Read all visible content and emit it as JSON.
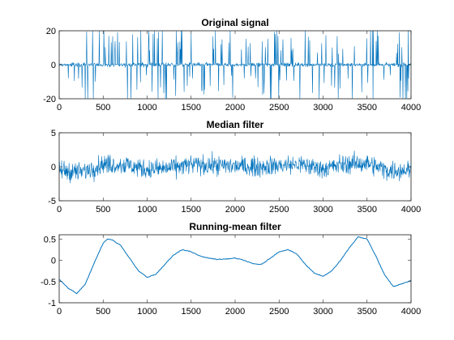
{
  "chart_data": [
    {
      "type": "line",
      "title": "Original signal",
      "xlim": [
        0,
        4000
      ],
      "ylim": [
        -20,
        20
      ],
      "xticks": [
        0,
        500,
        1000,
        1500,
        2000,
        2500,
        3000,
        3500,
        4000
      ],
      "yticks": [
        -20,
        0,
        20
      ],
      "color": "#0072BD",
      "description": "noise near 0 with frequent impulsive spikes reaching about ±20",
      "series": [
        {
          "x": [
            0,
            250,
            500,
            750,
            1000,
            1250,
            1500,
            1750,
            2000,
            2250,
            2500,
            2750,
            3000,
            3250,
            3500,
            3750,
            4000
          ],
          "values": [
            0,
            0.5,
            -0.3,
            0.2,
            0.1,
            -0.4,
            0.3,
            0,
            -0.2,
            0.4,
            0.1,
            -0.3,
            0.2,
            0,
            -0.1,
            0.3,
            0
          ]
        }
      ]
    },
    {
      "type": "line",
      "title": "Median filter",
      "xlim": [
        0,
        4000
      ],
      "ylim": [
        -5,
        5
      ],
      "xticks": [
        0,
        500,
        1000,
        1500,
        2000,
        2500,
        3000,
        3500,
        4000
      ],
      "yticks": [
        -5,
        0,
        5
      ],
      "color": "#0072BD",
      "series": [
        {
          "x": [
            0,
            250,
            500,
            750,
            1000,
            1250,
            1500,
            1750,
            2000,
            2250,
            2500,
            2750,
            3000,
            3250,
            3500,
            3750,
            4000
          ],
          "values": [
            -0.5,
            -0.8,
            0.4,
            0.3,
            -0.4,
            -0.2,
            0.3,
            0.2,
            0.1,
            0,
            0.2,
            0.3,
            -0.3,
            0.4,
            0.5,
            -0.6,
            -0.4
          ]
        }
      ]
    },
    {
      "type": "line",
      "title": "Running-mean filter",
      "xlim": [
        0,
        4000
      ],
      "ylim": [
        -1,
        0.6
      ],
      "xticks": [
        0,
        500,
        1000,
        1500,
        2000,
        2500,
        3000,
        3500,
        4000
      ],
      "yticks": [
        -1,
        -0.5,
        0,
        0.5
      ],
      "color": "#0072BD",
      "series": [
        {
          "x": [
            0,
            100,
            200,
            300,
            400,
            500,
            550,
            600,
            700,
            800,
            900,
            1000,
            1100,
            1200,
            1300,
            1400,
            1500,
            1600,
            1700,
            1800,
            1900,
            2000,
            2100,
            2200,
            2300,
            2400,
            2500,
            2600,
            2700,
            2800,
            2900,
            3000,
            3100,
            3200,
            3300,
            3400,
            3500,
            3600,
            3700,
            3800,
            3900,
            4000
          ],
          "values": [
            -0.45,
            -0.65,
            -0.78,
            -0.55,
            -0.05,
            0.4,
            0.5,
            0.48,
            0.35,
            0.05,
            -0.25,
            -0.4,
            -0.33,
            -0.1,
            0.12,
            0.25,
            0.2,
            0.1,
            0.05,
            0.02,
            0.03,
            0.05,
            0.0,
            -0.08,
            -0.1,
            0.05,
            0.2,
            0.25,
            0.15,
            -0.1,
            -0.3,
            -0.38,
            -0.25,
            0.0,
            0.3,
            0.55,
            0.5,
            0.1,
            -0.35,
            -0.62,
            -0.55,
            -0.48
          ]
        }
      ]
    }
  ]
}
